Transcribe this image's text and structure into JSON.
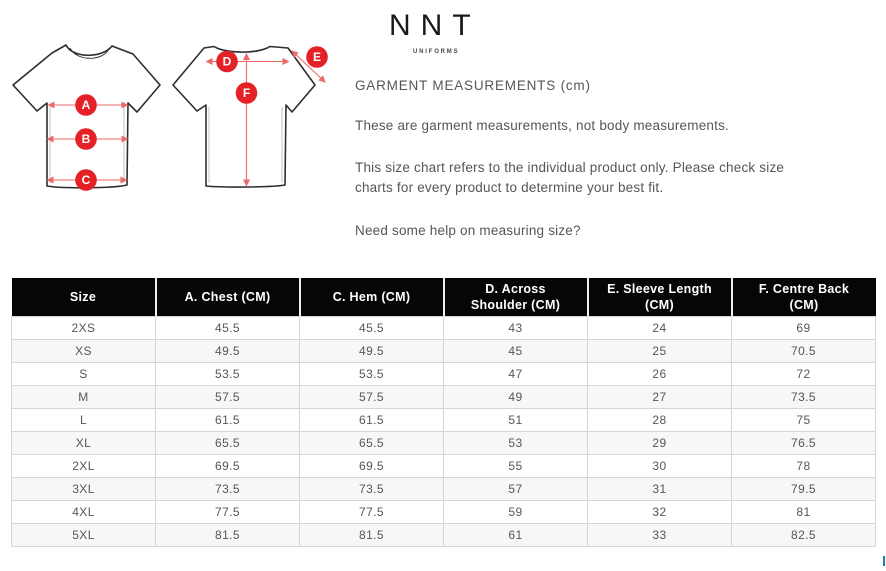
{
  "logo": {
    "name": "NNT",
    "tagline": "UNIFORMS"
  },
  "intro": {
    "heading": "GARMENT MEASUREMENTS (cm)",
    "para1": "These are garment measurements, not body measurements.",
    "para2": "This size chart refers to the individual product only. Please check size\ncharts for every product to determine your best fit.",
    "para3": "Need some help on measuring size?"
  },
  "diagram": {
    "labels": [
      "A",
      "B",
      "C",
      "D",
      "E",
      "F"
    ],
    "circle_color": "#e42127",
    "line_color": "#ec6a6a",
    "outline_color": "#2e2e2e"
  },
  "table": {
    "columns": [
      "Size",
      "A. Chest (CM)",
      "C. Hem (CM)",
      "D. Across\nShoulder (CM)",
      "E. Sleeve Length\n(CM)",
      "F. Centre Back\n(CM)"
    ],
    "rows": [
      [
        "2XS",
        "45.5",
        "45.5",
        "43",
        "24",
        "69"
      ],
      [
        "XS",
        "49.5",
        "49.5",
        "45",
        "25",
        "70.5"
      ],
      [
        "S",
        "53.5",
        "53.5",
        "47",
        "26",
        "72"
      ],
      [
        "M",
        "57.5",
        "57.5",
        "49",
        "27",
        "73.5"
      ],
      [
        "L",
        "61.5",
        "61.5",
        "51",
        "28",
        "75"
      ],
      [
        "XL",
        "65.5",
        "65.5",
        "53",
        "29",
        "76.5"
      ],
      [
        "2XL",
        "69.5",
        "69.5",
        "55",
        "30",
        "78"
      ],
      [
        "3XL",
        "73.5",
        "73.5",
        "57",
        "31",
        "79.5"
      ],
      [
        "4XL",
        "77.5",
        "77.5",
        "59",
        "32",
        "81"
      ],
      [
        "5XL",
        "81.5",
        "81.5",
        "61",
        "33",
        "82.5"
      ]
    ]
  }
}
